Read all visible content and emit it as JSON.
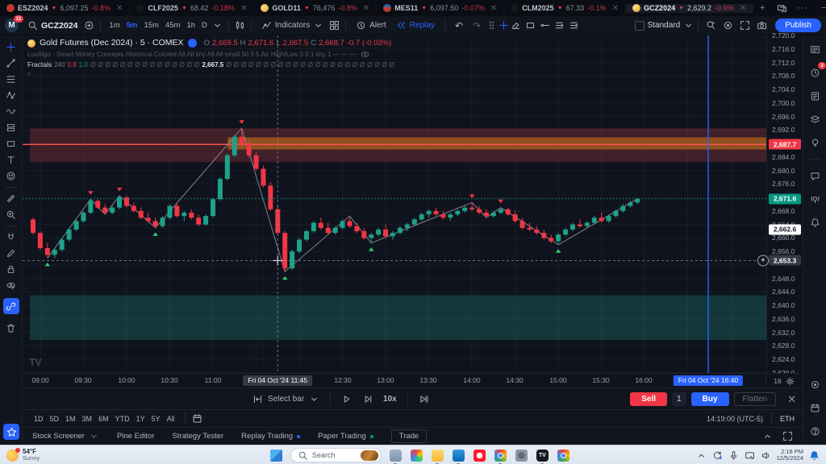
{
  "colors": {
    "accent": "#2962ff",
    "up": "#1fa189",
    "down": "#f23645",
    "supply_line": "#ff5252",
    "last_price_bg": "#089981",
    "crosshair_bg": "#363a45"
  },
  "window": {
    "tabs": [
      {
        "symbol": "ESZ2024",
        "price": "6,097.25",
        "change": "-0.8%",
        "icon": "sp",
        "active": false
      },
      {
        "symbol": "CLF2025",
        "price": "68.42",
        "change": "-0.18%",
        "icon": "oil",
        "active": false
      },
      {
        "symbol": "GOLD11",
        "price": "76,476",
        "change": "-0.8%",
        "icon": "gold",
        "active": false
      },
      {
        "symbol": "MES11",
        "price": "6,097.50",
        "change": "-0.07%",
        "icon": "flag",
        "active": false
      },
      {
        "symbol": "CLM2025",
        "price": "67.33",
        "change": "-0.1%",
        "icon": "oil",
        "active": false
      },
      {
        "symbol": "GCZ2024",
        "price": "2,629.2",
        "change": "-0.9%",
        "icon": "gold",
        "active": true
      }
    ],
    "new_tab": "+"
  },
  "toolbar": {
    "avatar": "M",
    "avatar_badge": "11",
    "symbol_search": "GCZ2024",
    "timeframes": [
      "1m",
      "5m",
      "15m",
      "45m",
      "1h",
      "D"
    ],
    "active_timeframe": "5m",
    "indicators_label": "Indicators",
    "alert_label": "Alert",
    "replay_label": "Replay",
    "undo": "↶",
    "redo": "↷",
    "layout_label": "Standard",
    "publish_label": "Publish"
  },
  "left_toolbar": {
    "tools": [
      "crosshair",
      "trend",
      "fib",
      "pattern",
      "wave",
      "position",
      "rect-tool",
      "text-T",
      "emoji",
      "ruler",
      "zoom-in",
      "magnet",
      "pencil",
      "lock",
      "eye-edit"
    ],
    "link_tool": "link",
    "trash_tool": "trash",
    "favorites_tool": "star"
  },
  "legend": {
    "title": "Gold Futures (Dec 2024) · 5 · COMEX",
    "o_label": "O",
    "h_label": "H",
    "l_label": "L",
    "c_label": "C",
    "o": "2,669.5",
    "h": "2,671.6",
    "l": "2,667.5",
    "c": "2,668.7",
    "change": "-0.7 (-0.03%)",
    "smc_text": "LuxAlgo - Smart Money Concepts Historical Colored All All tiny All All small 50 5 5 Atr High/Low 3 0.1 tiny 1 — — —",
    "fractals": {
      "name": "Fractals",
      "length": "240",
      "v1": "0.8",
      "v2": "1.0",
      "zeros1": "∅ ∅ ∅ ∅ ∅ ∅ ∅ ∅ ∅ ∅ ∅ ∅ ∅ ∅ ∅",
      "value": "2,667.5",
      "zeros2": "∅ ∅ ∅ ∅ ∅ ∅ ∅ ∅ ∅ ∅ ∅ ∅ ∅ ∅ ∅ ∅ ∅ ∅ ∅ ∅ ∅ ∅ ∅"
    },
    "collapse": "^"
  },
  "chart": {
    "price_axis": {
      "ticks": [
        {
          "t": "2,720.0",
          "p": 2720
        },
        {
          "t": "2,716.0",
          "p": 2716
        },
        {
          "t": "2,712.0",
          "p": 2712
        },
        {
          "t": "2,708.0",
          "p": 2708
        },
        {
          "t": "2,704.0",
          "p": 2704
        },
        {
          "t": "2,700.0",
          "p": 2700
        },
        {
          "t": "2,696.0",
          "p": 2696
        },
        {
          "t": "2,692.0",
          "p": 2692
        },
        {
          "t": "2,684.0",
          "p": 2684
        },
        {
          "t": "2,680.0",
          "p": 2680
        },
        {
          "t": "2,676.0",
          "p": 2676
        },
        {
          "t": "2,668.0",
          "p": 2668
        },
        {
          "t": "2,664.0",
          "p": 2664
        },
        {
          "t": "2,660.0",
          "p": 2660
        },
        {
          "t": "2,656.0",
          "p": 2656
        },
        {
          "t": "2,648.0",
          "p": 2648
        },
        {
          "t": "2,644.0",
          "p": 2644
        },
        {
          "t": "2,640.0",
          "p": 2640
        },
        {
          "t": "2,636.0",
          "p": 2636
        },
        {
          "t": "2,632.0",
          "p": 2632
        },
        {
          "t": "2,628.0",
          "p": 2628
        },
        {
          "t": "2,624.0",
          "p": 2624
        },
        {
          "t": "2,620.0",
          "p": 2620
        }
      ]
    },
    "axis_labels": [
      {
        "text": "2,687.7",
        "price": 2687.7,
        "bg": "#f23645",
        "fg": "#ffffff",
        "name": "supply-price-label"
      },
      {
        "text": "2,671.6",
        "price": 2671.6,
        "bg": "#089981",
        "fg": "#ffffff",
        "name": "last-price-label"
      },
      {
        "text": "2,662.6",
        "price": 2662.6,
        "bg": "#ffffff",
        "fg": "#131722",
        "name": "ask-price-label"
      },
      {
        "text": "2,653.3",
        "price": 2653.3,
        "bg": "#363a45",
        "fg": "#ffffff",
        "name": "crosshair-price-label"
      }
    ],
    "time_axis": {
      "labels": [
        {
          "text": "09:00",
          "x": 50
        },
        {
          "text": "09:30",
          "x": 103
        },
        {
          "text": "10:00",
          "x": 157
        },
        {
          "text": "10:30",
          "x": 210
        },
        {
          "text": "11:00",
          "x": 264
        },
        {
          "text": "12:30",
          "x": 425
        },
        {
          "text": "13:00",
          "x": 478
        },
        {
          "text": "13:30",
          "x": 531
        },
        {
          "text": "14:00",
          "x": 585
        },
        {
          "text": "14:30",
          "x": 638
        },
        {
          "text": "15:00",
          "x": 692
        },
        {
          "text": "15:30",
          "x": 745
        },
        {
          "text": "16:00",
          "x": 798
        }
      ],
      "crosshair_label": "Fri 04 Oct '24   11:45",
      "replay_label": "Fri 04 Oct '24   16:40",
      "corner": "18"
    }
  },
  "chart_data": {
    "type": "candlestick",
    "title": "Gold Futures (Dec 2024) · 5 · COMEX",
    "interval": "5m",
    "session_date": "Fri 04 Oct '24",
    "start_time": "08:55",
    "ylim": [
      2620,
      2720
    ],
    "last_price": 2671.6,
    "candles": [
      [
        2665.5,
        2666,
        2661,
        2661.5
      ],
      [
        2661.5,
        2662,
        2656.5,
        2657
      ],
      [
        2657,
        2658.5,
        2654,
        2655
      ],
      [
        2655,
        2657,
        2654,
        2656.5
      ],
      [
        2656.5,
        2660,
        2656,
        2659.5
      ],
      [
        2659.5,
        2663,
        2659,
        2662.5
      ],
      [
        2662.5,
        2665.5,
        2662,
        2665
      ],
      [
        2665,
        2668,
        2664.5,
        2667.5
      ],
      [
        2667.5,
        2671.5,
        2667,
        2671
      ],
      [
        2671,
        2671.5,
        2668.5,
        2669
      ],
      [
        2669,
        2670,
        2667,
        2667.5
      ],
      [
        2667.5,
        2669.5,
        2667,
        2669
      ],
      [
        2669,
        2672.5,
        2668.5,
        2672
      ],
      [
        2672,
        2672.5,
        2669,
        2669.5
      ],
      [
        2669.5,
        2670.5,
        2667.5,
        2668
      ],
      [
        2668,
        2669,
        2665.5,
        2666
      ],
      [
        2666,
        2667.5,
        2664.5,
        2665
      ],
      [
        2665,
        2666,
        2663,
        2663.5
      ],
      [
        2663.5,
        2666.5,
        2663,
        2666
      ],
      [
        2666,
        2670,
        2665.5,
        2669.5
      ],
      [
        2669.5,
        2670.5,
        2666,
        2666.5
      ],
      [
        2666.5,
        2668,
        2665,
        2667.5
      ],
      [
        2667.5,
        2668.5,
        2665.5,
        2666
      ],
      [
        2666,
        2667,
        2663.5,
        2664
      ],
      [
        2664,
        2667,
        2663.5,
        2666.5
      ],
      [
        2666.5,
        2672,
        2666,
        2671.5
      ],
      [
        2671.5,
        2678,
        2671,
        2677.5
      ],
      [
        2677.5,
        2685,
        2677,
        2684.5
      ],
      [
        2684.5,
        2690.5,
        2684,
        2690
      ],
      [
        2690,
        2692.5,
        2687,
        2688
      ],
      [
        2688,
        2689,
        2684,
        2684.5
      ],
      [
        2684.5,
        2685.5,
        2680,
        2680.5
      ],
      [
        2680.5,
        2681.5,
        2675,
        2675.5
      ],
      [
        2675.5,
        2676.5,
        2668,
        2668.5
      ],
      [
        2668.5,
        2669.5,
        2661,
        2661.5
      ],
      [
        2661.5,
        2662,
        2650,
        2651
      ],
      [
        2651,
        2656.5,
        2650.5,
        2656
      ],
      [
        2656,
        2660,
        2655.5,
        2659.5
      ],
      [
        2659.5,
        2662.5,
        2659,
        2662
      ],
      [
        2662,
        2665,
        2661.5,
        2664.5
      ],
      [
        2664.5,
        2666,
        2662.5,
        2663
      ],
      [
        2663,
        2664.5,
        2661,
        2661.5
      ],
      [
        2661.5,
        2663.5,
        2661,
        2663
      ],
      [
        2663,
        2665.5,
        2662.5,
        2665
      ],
      [
        2665,
        2666.5,
        2663,
        2663.5
      ],
      [
        2663.5,
        2664.5,
        2661.5,
        2662
      ],
      [
        2662,
        2663,
        2659.5,
        2660
      ],
      [
        2660,
        2661.5,
        2658.5,
        2661
      ],
      [
        2661,
        2663,
        2660.5,
        2662.5
      ],
      [
        2662.5,
        2664,
        2660,
        2660.5
      ],
      [
        2660.5,
        2662,
        2659.5,
        2661.5
      ],
      [
        2661.5,
        2663.5,
        2661,
        2663
      ],
      [
        2663,
        2664.5,
        2662,
        2664
      ],
      [
        2664,
        2666,
        2663.5,
        2665.5
      ],
      [
        2665.5,
        2667.5,
        2665,
        2667
      ],
      [
        2667,
        2668.5,
        2666,
        2668
      ],
      [
        2668,
        2669,
        2666.5,
        2667
      ],
      [
        2667,
        2668,
        2665.5,
        2666
      ],
      [
        2666,
        2667.5,
        2665,
        2667
      ],
      [
        2667,
        2668.5,
        2666.5,
        2668
      ],
      [
        2668,
        2669.5,
        2667.5,
        2669
      ],
      [
        2669,
        2670.5,
        2668,
        2668.5
      ],
      [
        2668.5,
        2669.5,
        2667,
        2667.5
      ],
      [
        2667.5,
        2668.5,
        2666,
        2666.5
      ],
      [
        2666.5,
        2668,
        2666,
        2667.5
      ],
      [
        2667.5,
        2669,
        2667,
        2668.5
      ],
      [
        2668.5,
        2669,
        2666.5,
        2667
      ],
      [
        2667,
        2668,
        2664.5,
        2665
      ],
      [
        2665,
        2666,
        2662.5,
        2663
      ],
      [
        2663,
        2664.5,
        2662,
        2662.5
      ],
      [
        2662.5,
        2663.5,
        2661,
        2661.5
      ],
      [
        2661.5,
        2662.5,
        2659.5,
        2660
      ],
      [
        2660,
        2661,
        2658.5,
        2659
      ],
      [
        2659,
        2661.5,
        2658,
        2661
      ],
      [
        2661,
        2663,
        2660.5,
        2662.5
      ],
      [
        2662.5,
        2664.5,
        2662,
        2664
      ],
      [
        2664,
        2665.5,
        2663,
        2663.5
      ],
      [
        2663.5,
        2665,
        2663,
        2664.5
      ],
      [
        2664.5,
        2666.5,
        2664,
        2666
      ],
      [
        2666,
        2667.5,
        2664.5,
        2665
      ],
      [
        2665,
        2667,
        2664.5,
        2666.5
      ],
      [
        2666.5,
        2668.5,
        2666,
        2668
      ],
      [
        2668,
        2670,
        2667.5,
        2669.5
      ],
      [
        2669.5,
        2671,
        2669,
        2670.5
      ],
      [
        2670.5,
        2671.8,
        2670,
        2671.6
      ]
    ],
    "zigzag": [
      [
        2,
        2654
      ],
      [
        8,
        2671.5
      ],
      [
        10,
        2667
      ],
      [
        12,
        2672.5
      ],
      [
        17,
        2663
      ],
      [
        29,
        2692.5
      ],
      [
        35,
        2650
      ],
      [
        44,
        2666.5
      ],
      [
        47,
        2658.5
      ],
      [
        61,
        2670.5
      ],
      [
        63,
        2666
      ],
      [
        65,
        2669
      ],
      [
        73,
        2658
      ],
      [
        84,
        2671.6
      ]
    ],
    "fractal_highs": [
      8,
      12,
      29,
      61,
      65
    ],
    "fractal_lows": [
      2,
      17,
      35,
      47,
      73
    ],
    "zones": [
      {
        "type": "supply",
        "top": 2692.5,
        "bottom": 2682.5,
        "color": "rgba(178,58,70,0.30)",
        "from_bar": 0
      },
      {
        "type": "supply-inner",
        "top": 2689.8,
        "bottom": 2686.2,
        "color": "rgba(255,148,20,0.42)",
        "from_bar": 27.5
      },
      {
        "type": "demand",
        "top": 2643.0,
        "bottom": 2629.8,
        "color": "rgba(32,138,120,0.32)",
        "from_bar": 0
      }
    ],
    "lines": [
      {
        "price": 2687.7,
        "color": "#ff5252",
        "style": "solid",
        "name": "supply-level"
      },
      {
        "price": 2671.6,
        "color": "#089981",
        "style": "dotted",
        "name": "last-price-line"
      }
    ],
    "crosshair": {
      "bar": 34,
      "price": 2653.3
    },
    "replay_cursor_x": 850
  },
  "replay_controls": {
    "select_bar": "Select bar",
    "speed": "10x"
  },
  "trade_panel": {
    "sell": "Sell",
    "qty": "1",
    "buy": "Buy",
    "flatten": "Flatten",
    "close": "✕"
  },
  "range_row": {
    "ranges": [
      "1D",
      "5D",
      "1M",
      "3M",
      "6M",
      "YTD",
      "1Y",
      "5Y",
      "All"
    ],
    "time": "14:19:00 (UTC-5)",
    "session": "ETH"
  },
  "bottom_tabs": {
    "tabs": [
      {
        "label": "Stock Screener",
        "caret": true,
        "dot": null
      },
      {
        "label": "Pine Editor",
        "caret": false,
        "dot": null
      },
      {
        "label": "Strategy Tester",
        "caret": false,
        "dot": null
      },
      {
        "label": "Replay Trading",
        "caret": false,
        "dot": "#2962ff"
      },
      {
        "label": "Paper Trading",
        "caret": false,
        "dot": "#089981"
      }
    ],
    "trade_button": "Trade"
  },
  "right_sidebar": {
    "icons": [
      "list",
      "clock",
      "news",
      "layers",
      "bulb",
      "chat",
      "stream",
      "bell"
    ],
    "clock_badge": "2",
    "bottom_icons": [
      "target",
      "calendar",
      "help"
    ]
  },
  "taskbar": {
    "weather": {
      "temp": "54°F",
      "condition": "Sunny"
    },
    "search": {
      "placeholder": "Search"
    },
    "apps": [
      "explorer",
      "photos",
      "folder",
      "outlook",
      "opera",
      "chrome",
      "settings",
      "tradingview",
      "chrome2"
    ],
    "clock": {
      "time": "2:18 PM",
      "date": "12/5/2024"
    }
  }
}
